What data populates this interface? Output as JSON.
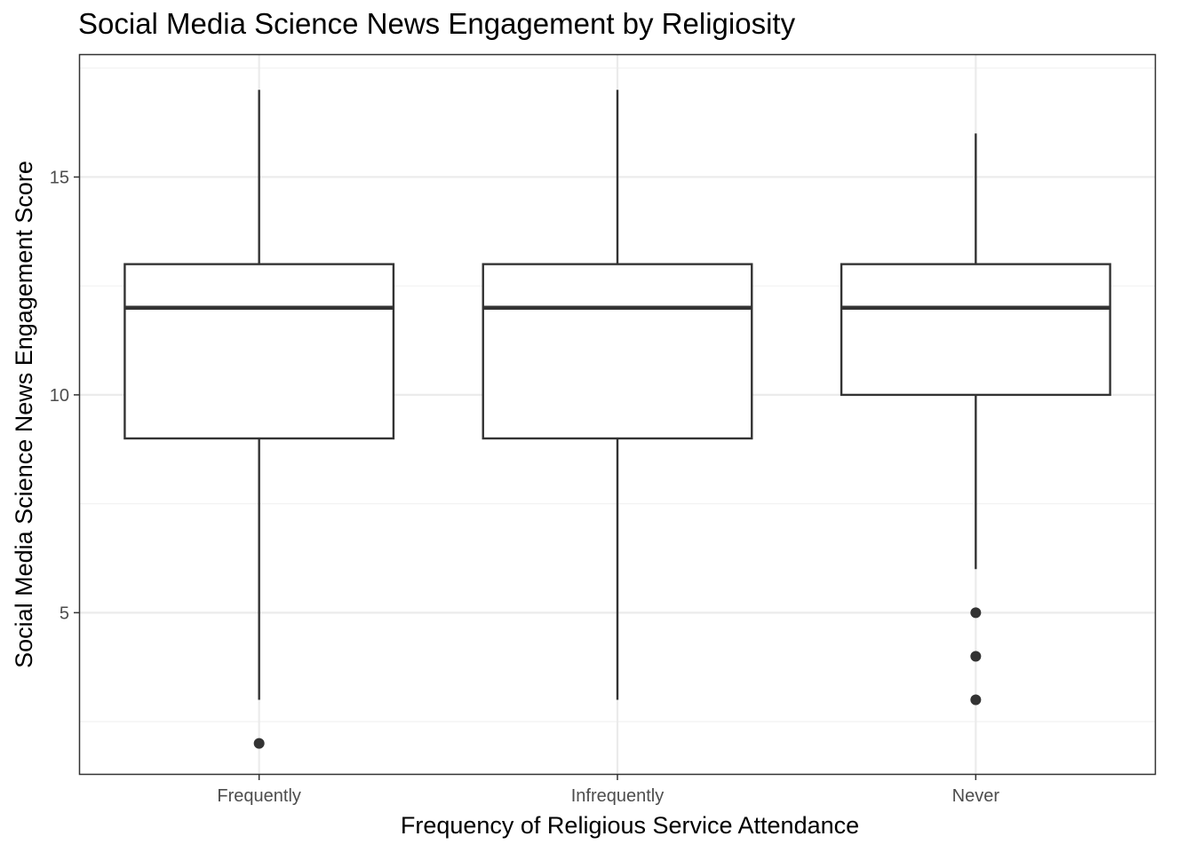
{
  "chart_data": {
    "type": "boxplot",
    "title": "Social Media Science News Engagement by Religiosity",
    "xlabel": "Frequency of Religious Service Attendance",
    "ylabel": "Social Media Science News Engagement Score",
    "categories": [
      "Frequently",
      "Infrequently",
      "Never"
    ],
    "ylim": [
      1.3,
      17.8
    ],
    "yticks": [
      5,
      10,
      15
    ],
    "grid": true,
    "boxes": [
      {
        "category": "Frequently",
        "whisker_low": 3,
        "q1": 9,
        "median": 12,
        "q3": 13,
        "whisker_high": 17,
        "outliers": [
          2
        ]
      },
      {
        "category": "Infrequently",
        "whisker_low": 3,
        "q1": 9,
        "median": 12,
        "q3": 13,
        "whisker_high": 17,
        "outliers": []
      },
      {
        "category": "Never",
        "whisker_low": 6,
        "q1": 10,
        "median": 12,
        "q3": 13,
        "whisker_high": 16,
        "outliers": [
          5,
          4,
          3
        ]
      }
    ],
    "colors": {
      "box_stroke": "#333333",
      "grid_major": "#ebebeb",
      "grid_minor": "#f2f2f2",
      "panel_border": "#333333",
      "outlier": "#333333"
    }
  }
}
